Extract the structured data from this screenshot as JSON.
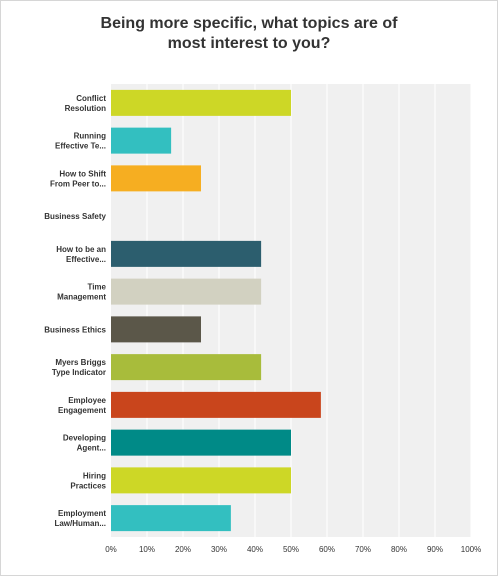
{
  "title_lines": [
    "Being more specific, what topics are of",
    "most interest to you?"
  ],
  "colors": {
    "plot_background": "#f0f0f0",
    "gridline": "#ffffff"
  },
  "chart_data": {
    "type": "bar",
    "orientation": "horizontal",
    "title": "Being more specific, what topics are of most interest to you?",
    "categories": [
      [
        "Conflict",
        "Resolution"
      ],
      [
        "Running",
        "Effective Te..."
      ],
      [
        "How to Shift",
        "From Peer to..."
      ],
      [
        "Business Safety"
      ],
      [
        "How to be an",
        "Effective..."
      ],
      [
        "Time",
        "Management"
      ],
      [
        "Business Ethics"
      ],
      [
        "Myers Briggs",
        "Type Indicator"
      ],
      [
        "Employee",
        "Engagement"
      ],
      [
        "Developing",
        "Agent..."
      ],
      [
        "Hiring",
        "Practices"
      ],
      [
        "Employment",
        "Law/Human..."
      ]
    ],
    "values": [
      50,
      16.7,
      25,
      0,
      41.7,
      41.7,
      25,
      41.7,
      58.3,
      50,
      50,
      33.3
    ],
    "bar_colors": [
      "#cdd726",
      "#33bfc0",
      "#f6ae21",
      "#2c6e7e",
      "#2c5e6e",
      "#d2d1c1",
      "#5b5749",
      "#a8bc3b",
      "#c9451c",
      "#008a87",
      "#cdd726",
      "#33bfc0"
    ],
    "x_ticks": [
      "0%",
      "10%",
      "20%",
      "30%",
      "40%",
      "50%",
      "60%",
      "70%",
      "80%",
      "90%",
      "100%"
    ],
    "xlim": [
      0,
      100
    ],
    "xlabel": "",
    "ylabel": "",
    "grid": true,
    "legend": "none"
  }
}
